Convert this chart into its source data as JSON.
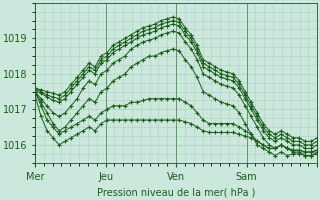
{
  "bg_color": "#cce8dc",
  "grid_color": "#aad0c0",
  "line_color": "#1a5c1a",
  "marker_color": "#1a5c1a",
  "tick_color": "#1a5c1a",
  "xlabel": "Pression niveau de la mer( hPa )",
  "xlim": [
    0,
    96
  ],
  "ylim": [
    1015.6,
    1019.85
  ],
  "yticks": [
    1016,
    1017,
    1018,
    1019
  ],
  "day_ticks": [
    0,
    24,
    48,
    72,
    96
  ],
  "day_labels": [
    "Mer",
    "Jeu",
    "Ven",
    "Sam"
  ],
  "series": [
    [
      1017.6,
      1017.55,
      1017.5,
      1017.45,
      1017.4,
      1017.5,
      1017.7,
      1017.9,
      1018.1,
      1018.3,
      1018.2,
      1018.5,
      1018.6,
      1018.8,
      1018.9,
      1019.0,
      1019.1,
      1019.2,
      1019.3,
      1019.35,
      1019.4,
      1019.5,
      1019.55,
      1019.6,
      1019.55,
      1019.3,
      1019.1,
      1018.8,
      1018.4,
      1018.3,
      1018.2,
      1018.1,
      1018.05,
      1018.0,
      1017.8,
      1017.5,
      1017.2,
      1016.9,
      1016.6,
      1016.4,
      1016.3,
      1016.4,
      1016.3,
      1016.2,
      1016.2,
      1016.1,
      1016.1,
      1016.2
    ],
    [
      1017.6,
      1017.5,
      1017.4,
      1017.35,
      1017.3,
      1017.4,
      1017.6,
      1017.8,
      1018.0,
      1018.2,
      1018.1,
      1018.4,
      1018.5,
      1018.7,
      1018.8,
      1018.9,
      1019.0,
      1019.1,
      1019.2,
      1019.25,
      1019.3,
      1019.4,
      1019.45,
      1019.5,
      1019.45,
      1019.2,
      1019.0,
      1018.7,
      1018.3,
      1018.2,
      1018.1,
      1018.0,
      1017.95,
      1017.9,
      1017.7,
      1017.4,
      1017.1,
      1016.8,
      1016.5,
      1016.3,
      1016.2,
      1016.3,
      1016.2,
      1016.1,
      1016.1,
      1016.0,
      1016.0,
      1016.1
    ],
    [
      1017.55,
      1017.45,
      1017.35,
      1017.25,
      1017.2,
      1017.3,
      1017.5,
      1017.7,
      1017.9,
      1018.1,
      1018.0,
      1018.3,
      1018.4,
      1018.6,
      1018.7,
      1018.8,
      1018.9,
      1019.0,
      1019.1,
      1019.15,
      1019.2,
      1019.3,
      1019.35,
      1019.4,
      1019.35,
      1019.1,
      1018.9,
      1018.6,
      1018.2,
      1018.1,
      1018.0,
      1017.9,
      1017.85,
      1017.8,
      1017.6,
      1017.3,
      1017.0,
      1016.7,
      1016.4,
      1016.2,
      1016.1,
      1016.2,
      1016.1,
      1016.0,
      1016.0,
      1015.9,
      1015.9,
      1016.0
    ],
    [
      1017.5,
      1017.3,
      1017.1,
      1016.9,
      1016.8,
      1016.9,
      1017.1,
      1017.3,
      1017.6,
      1017.8,
      1017.7,
      1018.0,
      1018.1,
      1018.3,
      1018.4,
      1018.5,
      1018.7,
      1018.8,
      1018.9,
      1018.95,
      1019.0,
      1019.1,
      1019.15,
      1019.2,
      1019.15,
      1018.9,
      1018.7,
      1018.4,
      1018.0,
      1017.9,
      1017.8,
      1017.7,
      1017.65,
      1017.6,
      1017.4,
      1017.1,
      1016.8,
      1016.5,
      1016.2,
      1016.0,
      1015.9,
      1016.0,
      1015.9,
      1015.8,
      1015.8,
      1015.7,
      1015.7,
      1015.8
    ],
    [
      1017.5,
      1017.2,
      1016.9,
      1016.6,
      1016.4,
      1016.5,
      1016.7,
      1016.9,
      1017.1,
      1017.3,
      1017.2,
      1017.5,
      1017.6,
      1017.8,
      1017.9,
      1018.0,
      1018.2,
      1018.3,
      1018.4,
      1018.5,
      1018.5,
      1018.6,
      1018.65,
      1018.7,
      1018.65,
      1018.4,
      1018.2,
      1017.9,
      1017.5,
      1017.4,
      1017.3,
      1017.2,
      1017.15,
      1017.1,
      1016.9,
      1016.6,
      1016.3,
      1016.0,
      1015.9,
      1015.8,
      1015.7,
      1015.8,
      1015.7,
      1015.75,
      1015.75,
      1015.7,
      1015.7,
      1015.75
    ],
    [
      1017.5,
      1017.1,
      1016.7,
      1016.5,
      1016.3,
      1016.4,
      1016.5,
      1016.6,
      1016.7,
      1016.8,
      1016.7,
      1016.9,
      1017.0,
      1017.1,
      1017.1,
      1017.1,
      1017.2,
      1017.2,
      1017.25,
      1017.3,
      1017.3,
      1017.3,
      1017.3,
      1017.3,
      1017.3,
      1017.2,
      1017.1,
      1016.9,
      1016.7,
      1016.6,
      1016.6,
      1016.6,
      1016.6,
      1016.6,
      1016.5,
      1016.4,
      1016.3,
      1016.1,
      1016.0,
      1015.9,
      1015.9,
      1016.0,
      1015.9,
      1015.85,
      1015.85,
      1015.8,
      1015.8,
      1015.85
    ],
    [
      1017.4,
      1016.8,
      1016.4,
      1016.2,
      1016.0,
      1016.1,
      1016.2,
      1016.3,
      1016.4,
      1016.5,
      1016.4,
      1016.6,
      1016.7,
      1016.7,
      1016.7,
      1016.7,
      1016.7,
      1016.7,
      1016.7,
      1016.7,
      1016.7,
      1016.7,
      1016.7,
      1016.7,
      1016.7,
      1016.65,
      1016.6,
      1016.5,
      1016.4,
      1016.35,
      1016.35,
      1016.35,
      1016.35,
      1016.35,
      1016.3,
      1016.25,
      1016.2,
      1016.1,
      1016.0,
      1015.9,
      1015.9,
      1016.0,
      1015.9,
      1015.85,
      1015.85,
      1015.8,
      1015.8,
      1015.85
    ]
  ]
}
